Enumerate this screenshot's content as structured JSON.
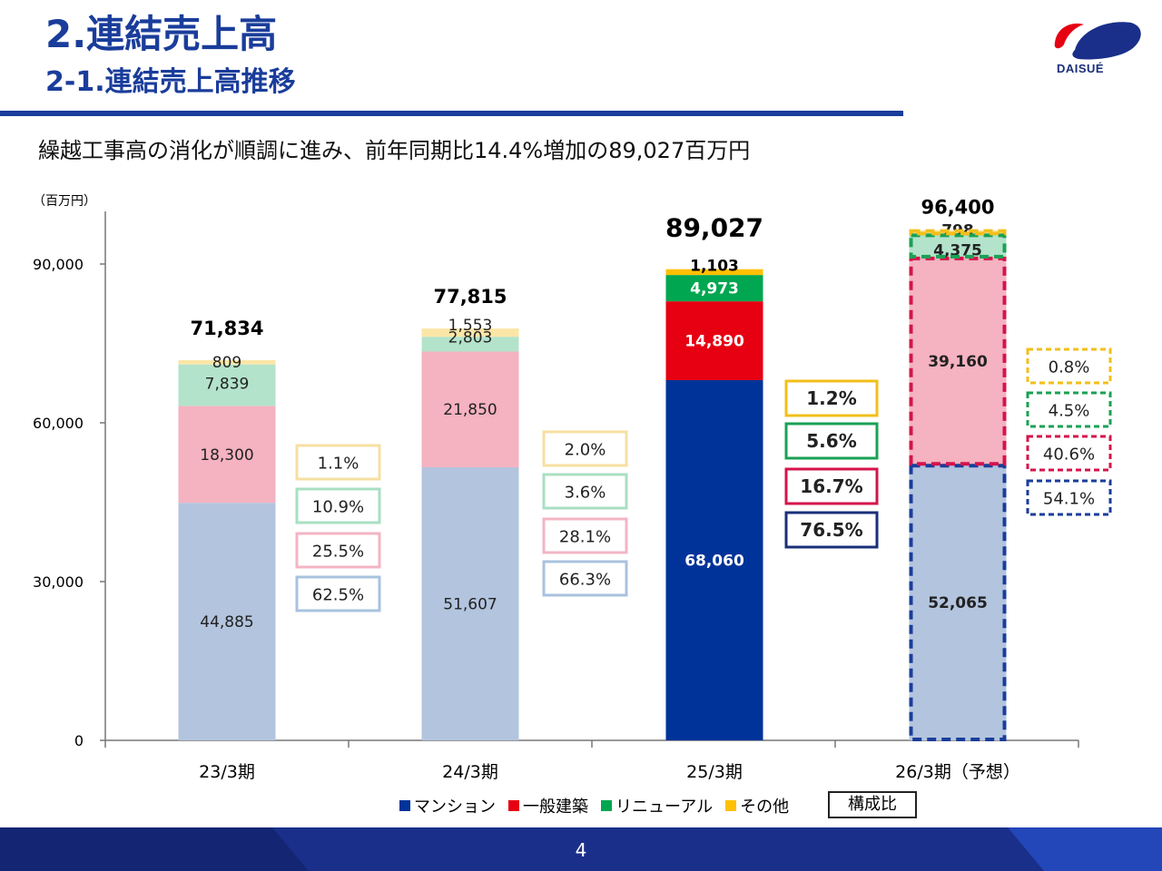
{
  "header": {
    "title": "2.連結売上高",
    "subtitle": "2-1.連結売上高推移",
    "logo_text": "DAISUÉ"
  },
  "headline": "繰越工事高の消化が順調に進み、前年同期比14.4%増加の89,027百万円",
  "page_number": "4",
  "composition_label": "構成比",
  "legend": [
    {
      "label": "マンション",
      "color": "#003399"
    },
    {
      "label": "一般建築",
      "color": "#e60012"
    },
    {
      "label": "リニューアル",
      "color": "#00a650"
    },
    {
      "label": "その他",
      "color": "#ffc000"
    }
  ],
  "chart_data": {
    "type": "bar",
    "stacked": true,
    "unit_label": "（百万円）",
    "categories": [
      "23/3期",
      "24/3期",
      "25/3期",
      "26/3期（予想）"
    ],
    "yticks": [
      "0",
      "30,000",
      "60,000",
      "90,000"
    ],
    "ylim": [
      0,
      100000
    ],
    "series": [
      {
        "name": "マンション",
        "values": [
          44885,
          51607,
          68060,
          52065
        ],
        "labels": [
          "44,885",
          "51,607",
          "68,060",
          "52,065"
        ]
      },
      {
        "name": "一般建築",
        "values": [
          18300,
          21850,
          14890,
          39160
        ],
        "labels": [
          "18,300",
          "21,850",
          "14,890",
          "39,160"
        ]
      },
      {
        "name": "リニューアル",
        "values": [
          7839,
          2803,
          4973,
          4375
        ],
        "labels": [
          "7,839",
          "2,803",
          "4,973",
          "4,375"
        ]
      },
      {
        "name": "その他",
        "values": [
          809,
          1553,
          1103,
          798
        ],
        "labels": [
          "809",
          "1,553",
          "1,103",
          "798"
        ]
      }
    ],
    "totals": [
      "71,834",
      "77,815",
      "89,027",
      "96,400"
    ],
    "composition": [
      [
        "62.5%",
        "25.5%",
        "10.9%",
        "1.1%"
      ],
      [
        "66.3%",
        "28.1%",
        "3.6%",
        "2.0%"
      ],
      [
        "76.5%",
        "16.7%",
        "5.6%",
        "1.2%"
      ],
      [
        "54.1%",
        "40.6%",
        "4.5%",
        "0.8%"
      ]
    ],
    "highlight_index": 2,
    "forecast_index": 3
  }
}
